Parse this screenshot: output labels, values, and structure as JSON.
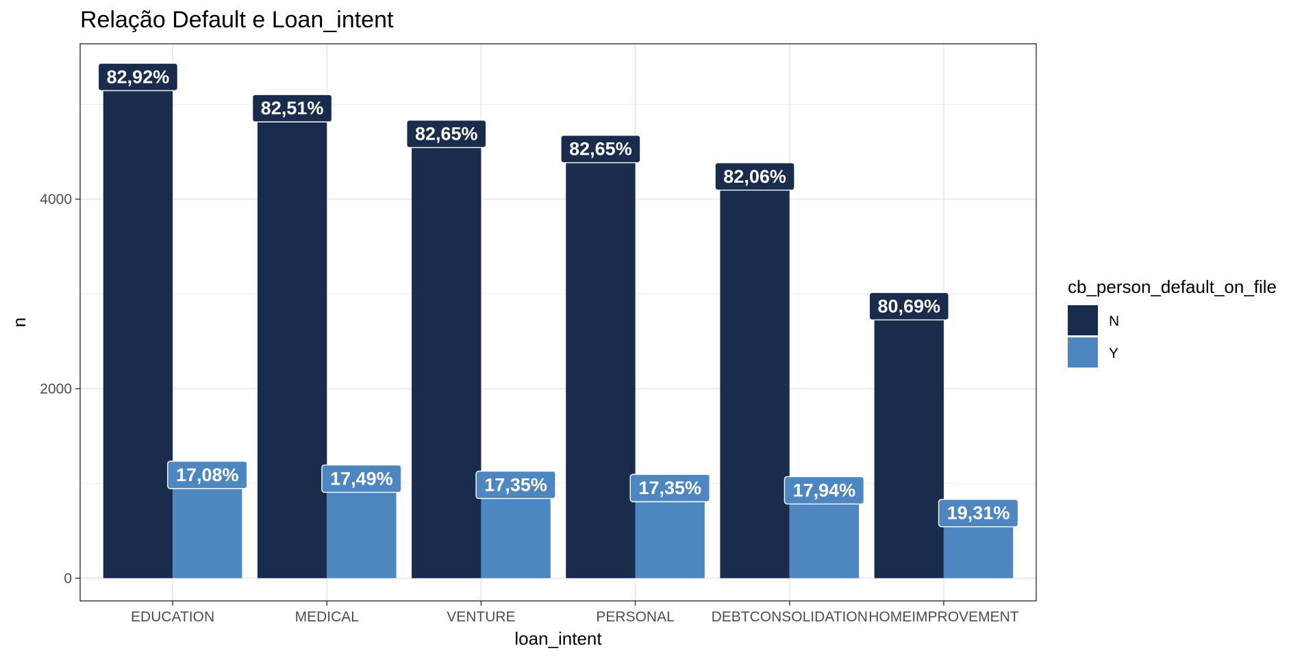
{
  "chart_data": {
    "type": "bar",
    "title": "Relação Default e Loan_intent",
    "xlabel": "loan_intent",
    "ylabel": "n",
    "categories": [
      "EDUCATION",
      "MEDICAL",
      "VENTURE",
      "PERSONAL",
      "DEBTCONSOLIDATION",
      "HOMEIMPROVEMENT"
    ],
    "series": [
      {
        "name": "N",
        "color": "#1a2c4c",
        "values": [
          5290,
          4960,
          4690,
          4530,
          4240,
          2870
        ],
        "labels": [
          "82,92%",
          "82,51%",
          "82,65%",
          "82,65%",
          "82,06%",
          "80,69%"
        ]
      },
      {
        "name": "Y",
        "color": "#4e87c0",
        "values": [
          1090,
          1050,
          985,
          951,
          927,
          687
        ],
        "labels": [
          "17,08%",
          "17,49%",
          "17,35%",
          "17,35%",
          "17,94%",
          "19,31%"
        ]
      }
    ],
    "ylim": [
      -240,
      5640
    ],
    "yticks": [
      0,
      2000,
      4000
    ],
    "ytick_labels": [
      "0",
      "2000",
      "4000"
    ],
    "grid": true,
    "legend": {
      "title": "cb_person_default_on_file",
      "position": "right"
    }
  }
}
